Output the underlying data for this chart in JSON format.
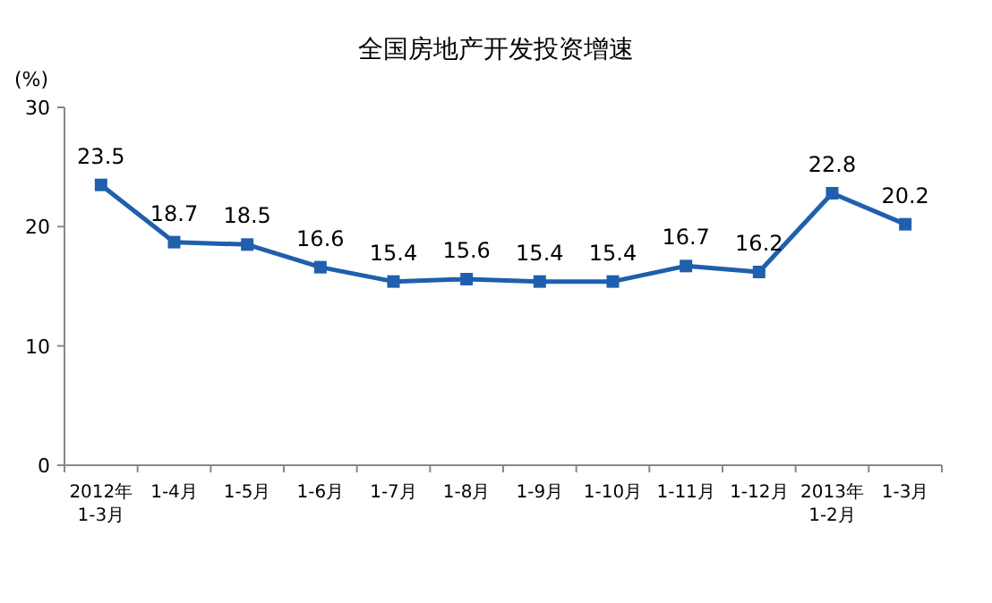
{
  "chart_data": {
    "type": "line",
    "title": "全国房地产开发投资增速",
    "ylabel": "(%)",
    "categories": [
      "2012年\n1-3月",
      "1-4月",
      "1-5月",
      "1-6月",
      "1-7月",
      "1-8月",
      "1-9月",
      "1-10月",
      "1-11月",
      "1-12月",
      "2013年\n1-2月",
      "1-3月"
    ],
    "values": [
      23.5,
      18.7,
      18.5,
      16.6,
      15.4,
      15.6,
      15.4,
      15.4,
      16.7,
      16.2,
      22.8,
      20.2
    ],
    "color": "#1f5fad",
    "marker": "square",
    "data_labels": true,
    "grid": false,
    "ylim": [
      0,
      30
    ],
    "yticks": [
      0,
      10,
      20,
      30
    ]
  }
}
